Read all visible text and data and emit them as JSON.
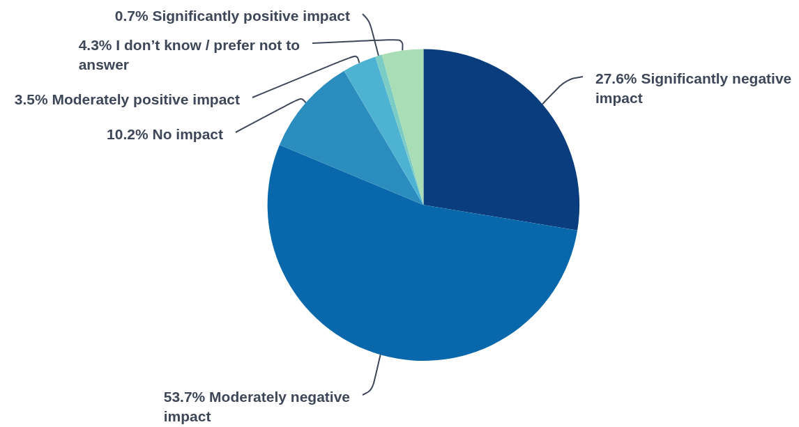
{
  "chart_data": {
    "type": "pie",
    "categories": [
      "Significantly negative impact",
      "Moderately negative impact",
      "No impact",
      "Moderately positive impact",
      "Significantly positive impact",
      "I don’t know / prefer not to answer"
    ],
    "values": [
      27.6,
      53.7,
      10.2,
      3.5,
      0.7,
      4.3
    ],
    "value_labels": [
      "27.6%",
      "53.7%",
      "10.2%",
      "3.5%",
      "0.7%",
      "4.3%"
    ],
    "colors": [
      "#0a3d7e",
      "#0868ab",
      "#2b8cbe",
      "#4eb3d3",
      "#7bccc4",
      "#a8ddb5"
    ],
    "legend": false
  }
}
